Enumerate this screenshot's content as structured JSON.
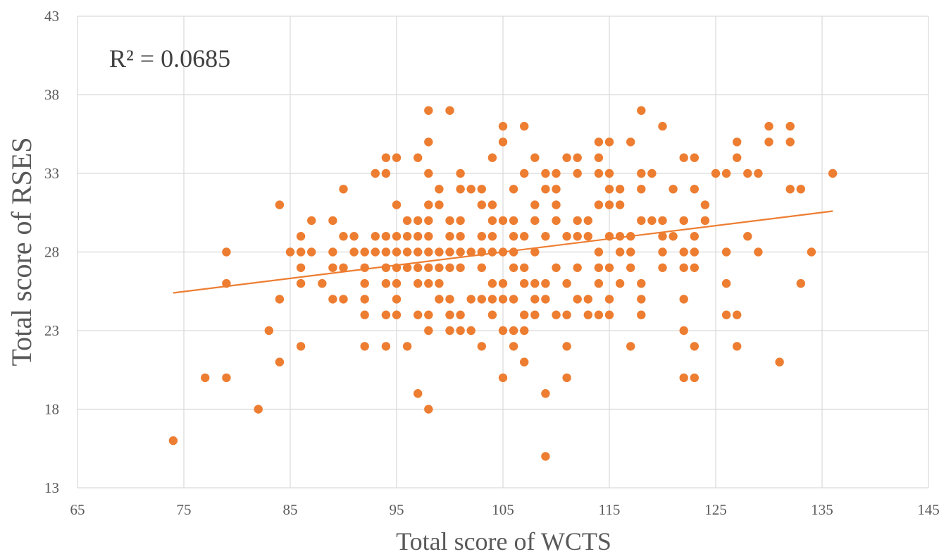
{
  "chart_data": {
    "type": "scatter",
    "xlabel": "Total score of WCTS",
    "ylabel": "Total score of RSES",
    "xlim": [
      65,
      145
    ],
    "ylim": [
      13,
      43
    ],
    "x_ticks": [
      "65",
      "75",
      "85",
      "95",
      "105",
      "115",
      "125",
      "135",
      "145"
    ],
    "y_ticks": [
      "13",
      "18",
      "23",
      "28",
      "33",
      "38",
      "43"
    ],
    "grid": true,
    "annotation": "R² = 0.0685",
    "colors": {
      "point": "#ED7D31",
      "trendline": "#ED7D31",
      "grid": "#D9D9D9"
    },
    "trendline": {
      "type": "linear",
      "x": [
        74,
        136
      ],
      "y": [
        25.4,
        30.6
      ]
    },
    "points": [
      [
        74,
        16
      ],
      [
        77,
        20
      ],
      [
        79,
        28
      ],
      [
        79,
        26
      ],
      [
        79,
        20
      ],
      [
        82,
        18
      ],
      [
        83,
        23
      ],
      [
        84,
        31
      ],
      [
        84,
        25
      ],
      [
        84,
        21
      ],
      [
        85,
        28
      ],
      [
        86,
        29
      ],
      [
        86,
        28
      ],
      [
        86,
        27
      ],
      [
        86,
        26
      ],
      [
        86,
        22
      ],
      [
        87,
        28
      ],
      [
        87,
        30
      ],
      [
        88,
        26
      ],
      [
        89,
        30
      ],
      [
        89,
        28
      ],
      [
        89,
        27
      ],
      [
        89,
        25
      ],
      [
        90,
        32
      ],
      [
        90,
        29
      ],
      [
        90,
        27
      ],
      [
        90,
        25
      ],
      [
        91,
        29
      ],
      [
        91,
        28
      ],
      [
        92,
        28
      ],
      [
        92,
        27
      ],
      [
        92,
        26
      ],
      [
        92,
        25
      ],
      [
        92,
        24
      ],
      [
        92,
        22
      ],
      [
        93,
        33
      ],
      [
        93,
        29
      ],
      [
        93,
        28
      ],
      [
        94,
        34
      ],
      [
        94,
        33
      ],
      [
        94,
        29
      ],
      [
        94,
        28
      ],
      [
        94,
        27
      ],
      [
        94,
        26
      ],
      [
        94,
        24
      ],
      [
        94,
        22
      ],
      [
        95,
        34
      ],
      [
        95,
        31
      ],
      [
        95,
        29
      ],
      [
        95,
        28
      ],
      [
        95,
        27
      ],
      [
        95,
        26
      ],
      [
        95,
        25
      ],
      [
        95,
        24
      ],
      [
        96,
        30
      ],
      [
        96,
        29
      ],
      [
        96,
        28
      ],
      [
        96,
        27
      ],
      [
        96,
        22
      ],
      [
        97,
        34
      ],
      [
        97,
        30
      ],
      [
        97,
        29
      ],
      [
        97,
        28
      ],
      [
        97,
        27
      ],
      [
        97,
        26
      ],
      [
        97,
        24
      ],
      [
        97,
        19
      ],
      [
        98,
        37
      ],
      [
        98,
        35
      ],
      [
        98,
        33
      ],
      [
        98,
        31
      ],
      [
        98,
        30
      ],
      [
        98,
        29
      ],
      [
        98,
        28
      ],
      [
        98,
        27
      ],
      [
        98,
        26
      ],
      [
        98,
        24
      ],
      [
        98,
        23
      ],
      [
        98,
        18
      ],
      [
        99,
        32
      ],
      [
        99,
        31
      ],
      [
        99,
        28
      ],
      [
        99,
        27
      ],
      [
        99,
        26
      ],
      [
        99,
        25
      ],
      [
        100,
        37
      ],
      [
        100,
        30
      ],
      [
        100,
        29
      ],
      [
        100,
        28
      ],
      [
        100,
        27
      ],
      [
        100,
        25
      ],
      [
        100,
        24
      ],
      [
        100,
        23
      ],
      [
        101,
        33
      ],
      [
        101,
        32
      ],
      [
        101,
        30
      ],
      [
        101,
        29
      ],
      [
        101,
        28
      ],
      [
        101,
        27
      ],
      [
        101,
        24
      ],
      [
        101,
        23
      ],
      [
        102,
        32
      ],
      [
        102,
        28
      ],
      [
        102,
        25
      ],
      [
        102,
        23
      ],
      [
        103,
        32
      ],
      [
        103,
        31
      ],
      [
        103,
        29
      ],
      [
        103,
        28
      ],
      [
        103,
        27
      ],
      [
        103,
        25
      ],
      [
        103,
        22
      ],
      [
        104,
        34
      ],
      [
        104,
        31
      ],
      [
        104,
        30
      ],
      [
        104,
        29
      ],
      [
        104,
        28
      ],
      [
        104,
        26
      ],
      [
        104,
        25
      ],
      [
        104,
        24
      ],
      [
        105,
        36
      ],
      [
        105,
        35
      ],
      [
        105,
        30
      ],
      [
        105,
        28
      ],
      [
        105,
        26
      ],
      [
        105,
        25
      ],
      [
        105,
        23
      ],
      [
        105,
        20
      ],
      [
        106,
        32
      ],
      [
        106,
        30
      ],
      [
        106,
        29
      ],
      [
        106,
        28
      ],
      [
        106,
        27
      ],
      [
        106,
        25
      ],
      [
        106,
        23
      ],
      [
        106,
        22
      ],
      [
        107,
        36
      ],
      [
        107,
        33
      ],
      [
        107,
        29
      ],
      [
        107,
        27
      ],
      [
        107,
        26
      ],
      [
        107,
        24
      ],
      [
        107,
        23
      ],
      [
        107,
        21
      ],
      [
        108,
        34
      ],
      [
        108,
        31
      ],
      [
        108,
        30
      ],
      [
        108,
        28
      ],
      [
        108,
        26
      ],
      [
        108,
        25
      ],
      [
        108,
        24
      ],
      [
        109,
        33
      ],
      [
        109,
        32
      ],
      [
        109,
        29
      ],
      [
        109,
        26
      ],
      [
        109,
        25
      ],
      [
        109,
        19
      ],
      [
        109,
        15
      ],
      [
        110,
        33
      ],
      [
        110,
        32
      ],
      [
        110,
        31
      ],
      [
        110,
        30
      ],
      [
        110,
        27
      ],
      [
        110,
        24
      ],
      [
        111,
        34
      ],
      [
        111,
        29
      ],
      [
        111,
        26
      ],
      [
        111,
        24
      ],
      [
        111,
        22
      ],
      [
        111,
        20
      ],
      [
        112,
        34
      ],
      [
        112,
        33
      ],
      [
        112,
        30
      ],
      [
        112,
        29
      ],
      [
        112,
        27
      ],
      [
        112,
        25
      ],
      [
        113,
        30
      ],
      [
        113,
        29
      ],
      [
        113,
        25
      ],
      [
        113,
        24
      ],
      [
        114,
        35
      ],
      [
        114,
        34
      ],
      [
        114,
        33
      ],
      [
        114,
        31
      ],
      [
        114,
        28
      ],
      [
        114,
        27
      ],
      [
        114,
        26
      ],
      [
        114,
        24
      ],
      [
        115,
        35
      ],
      [
        115,
        33
      ],
      [
        115,
        32
      ],
      [
        115,
        31
      ],
      [
        115,
        29
      ],
      [
        115,
        27
      ],
      [
        115,
        25
      ],
      [
        115,
        24
      ],
      [
        116,
        32
      ],
      [
        116,
        31
      ],
      [
        116,
        29
      ],
      [
        116,
        28
      ],
      [
        116,
        26
      ],
      [
        117,
        35
      ],
      [
        117,
        29
      ],
      [
        117,
        28
      ],
      [
        117,
        27
      ],
      [
        117,
        22
      ],
      [
        118,
        37
      ],
      [
        118,
        33
      ],
      [
        118,
        32
      ],
      [
        118,
        30
      ],
      [
        118,
        26
      ],
      [
        118,
        25
      ],
      [
        118,
        24
      ],
      [
        119,
        33
      ],
      [
        119,
        30
      ],
      [
        120,
        36
      ],
      [
        120,
        30
      ],
      [
        120,
        29
      ],
      [
        120,
        28
      ],
      [
        120,
        27
      ],
      [
        121,
        32
      ],
      [
        121,
        29
      ],
      [
        122,
        34
      ],
      [
        122,
        30
      ],
      [
        122,
        28
      ],
      [
        122,
        27
      ],
      [
        122,
        25
      ],
      [
        122,
        23
      ],
      [
        122,
        20
      ],
      [
        123,
        34
      ],
      [
        123,
        32
      ],
      [
        123,
        29
      ],
      [
        123,
        28
      ],
      [
        123,
        27
      ],
      [
        123,
        22
      ],
      [
        123,
        20
      ],
      [
        124,
        31
      ],
      [
        124,
        30
      ],
      [
        125,
        33
      ],
      [
        126,
        33
      ],
      [
        126,
        28
      ],
      [
        126,
        26
      ],
      [
        126,
        24
      ],
      [
        127,
        35
      ],
      [
        127,
        34
      ],
      [
        127,
        24
      ],
      [
        127,
        22
      ],
      [
        128,
        33
      ],
      [
        128,
        29
      ],
      [
        129,
        33
      ],
      [
        129,
        28
      ],
      [
        130,
        36
      ],
      [
        130,
        35
      ],
      [
        131,
        21
      ],
      [
        132,
        36
      ],
      [
        132,
        35
      ],
      [
        132,
        32
      ],
      [
        133,
        32
      ],
      [
        133,
        26
      ],
      [
        134,
        28
      ],
      [
        136,
        33
      ]
    ]
  }
}
